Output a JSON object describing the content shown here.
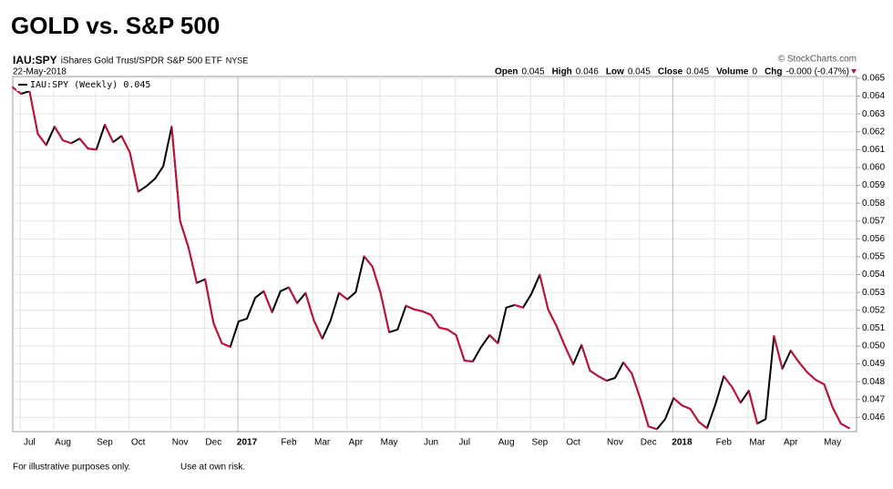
{
  "header": {
    "title": "GOLD vs. S&P 500",
    "symbol": "IAU:SPY",
    "name": "iShares Gold Trust/SPDR S&P 500 ETF",
    "exchange": "NYSE",
    "date": "22-May-2018",
    "source": "© StockCharts.com",
    "quote": [
      {
        "label": "Open",
        "value": "0.045"
      },
      {
        "label": "High",
        "value": "0.046"
      },
      {
        "label": "Low",
        "value": "0.045"
      },
      {
        "label": "Close",
        "value": "0.045"
      },
      {
        "label": "Volume",
        "value": "0"
      },
      {
        "label": "Chg",
        "value": "-0.000 (-0.47%)"
      }
    ]
  },
  "footer": [
    "For illustrative purposes only.",
    "Use at own risk."
  ],
  "chart_data": {
    "type": "line",
    "categories": [
      null,
      null,
      "Jul",
      null,
      null,
      null,
      "Aug",
      null,
      null,
      null,
      null,
      "Sep",
      null,
      null,
      null,
      "Oct",
      null,
      null,
      null,
      null,
      "Nov",
      null,
      null,
      null,
      "Dec",
      null,
      null,
      null,
      "2017",
      null,
      null,
      null,
      null,
      "Feb",
      null,
      null,
      null,
      "Mar",
      null,
      null,
      null,
      "Apr",
      null,
      null,
      null,
      "May",
      null,
      null,
      null,
      null,
      "Jun",
      null,
      null,
      null,
      "Jul",
      null,
      null,
      null,
      null,
      "Aug",
      null,
      null,
      null,
      "Sep",
      null,
      null,
      null,
      "Oct",
      null,
      null,
      null,
      null,
      "Nov",
      null,
      null,
      null,
      "Dec",
      null,
      null,
      null,
      "2018",
      null,
      null,
      null,
      null,
      "Feb",
      null,
      null,
      null,
      "Mar",
      null,
      null,
      null,
      "Apr",
      null,
      null,
      null,
      null,
      "May",
      null,
      null
    ],
    "series": [
      {
        "name": "IAU:SPY (Weekly) 0.045",
        "color": "#000000",
        "down_color": "#c0143c",
        "values": [
          0.06449,
          0.06413,
          0.06428,
          0.06188,
          0.06126,
          0.06229,
          0.06152,
          0.06136,
          0.06162,
          0.06106,
          0.06101,
          0.06239,
          0.06142,
          0.06177,
          0.06085,
          0.05865,
          0.05896,
          0.05937,
          0.06008,
          0.06229,
          0.05701,
          0.05553,
          0.05353,
          0.05374,
          0.05128,
          0.05015,
          0.04995,
          0.05138,
          0.05153,
          0.05271,
          0.05307,
          0.05189,
          0.05307,
          0.05328,
          0.0524,
          0.05297,
          0.05143,
          0.05041,
          0.05143,
          0.05297,
          0.05261,
          0.05302,
          0.05502,
          0.05445,
          0.05292,
          0.05077,
          0.05092,
          0.05225,
          0.05205,
          0.05194,
          0.05174,
          0.05102,
          0.05092,
          0.05061,
          0.04918,
          0.04913,
          0.04995,
          0.05061,
          0.05015,
          0.05215,
          0.0523,
          0.05215,
          0.05292,
          0.05399,
          0.05205,
          0.05112,
          0.05,
          0.04897,
          0.05005,
          0.04862,
          0.04831,
          0.04805,
          0.04821,
          0.04908,
          0.04846,
          0.04708,
          0.04549,
          0.04534,
          0.0459,
          0.04708,
          0.04667,
          0.04647,
          0.04575,
          0.04539,
          0.04672,
          0.04831,
          0.04769,
          0.04682,
          0.04749,
          0.04565,
          0.0459,
          0.05056,
          0.04872,
          0.04974,
          0.04908,
          0.04851,
          0.0481,
          0.04785,
          0.04657,
          0.04565,
          0.04539
        ]
      }
    ],
    "ylim": [
      0.0452,
      0.0651
    ],
    "yticks": [
      0.046,
      0.047,
      0.048,
      0.049,
      {
        "value": 0.05,
        "label": "0.050"
      },
      0.051,
      0.052,
      0.053,
      0.054,
      0.055,
      0.056,
      0.057,
      0.058,
      0.059,
      {
        "value": 0.06,
        "label": "0.060"
      },
      0.061,
      0.062,
      0.063,
      0.064,
      0.065
    ],
    "grid": true,
    "legend": "top-left"
  }
}
